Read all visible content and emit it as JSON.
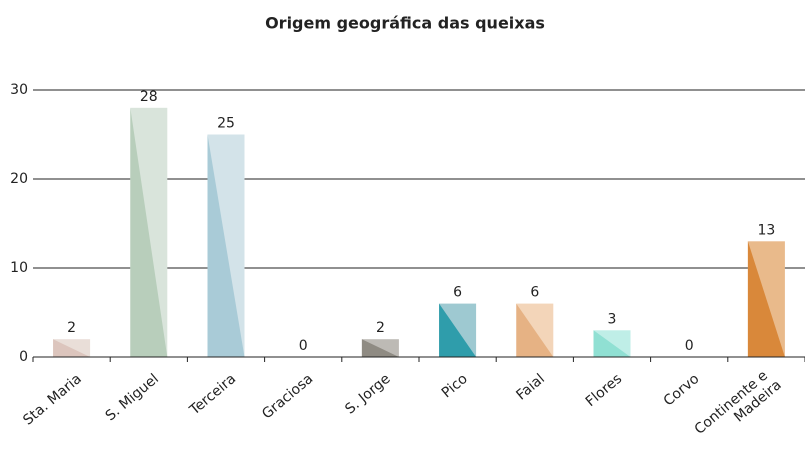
{
  "chart_data": {
    "type": "bar",
    "title": "Origem geográfica das queixas",
    "categories": [
      "Sta. Maria",
      "S. Miguel",
      "Terceira",
      "Graciosa",
      "S. Jorge",
      "Pico",
      "Faial",
      "Flores",
      "Corvo",
      "Continente e Madeira"
    ],
    "values": [
      2,
      28,
      25,
      0,
      2,
      6,
      6,
      3,
      0,
      13
    ],
    "colors": [
      "#e9ded8",
      "#d9e4db",
      "#d3e3e9",
      "#dddddd",
      "#bdbab5",
      "#9ec9d1",
      "#f3d5b9",
      "#bfeee7",
      "#dddddd",
      "#e9ba8b"
    ],
    "shade_colors": [
      "#dcc5bd",
      "#b8cebb",
      "#a9cbd7",
      "#bbbbbb",
      "#8f8b83",
      "#2f9dab",
      "#e6b284",
      "#90e0d3",
      "#bbbbbb",
      "#d9883a"
    ],
    "ylim": [
      0,
      30
    ],
    "yticks": [
      0,
      10,
      20,
      30
    ],
    "grid": true
  }
}
